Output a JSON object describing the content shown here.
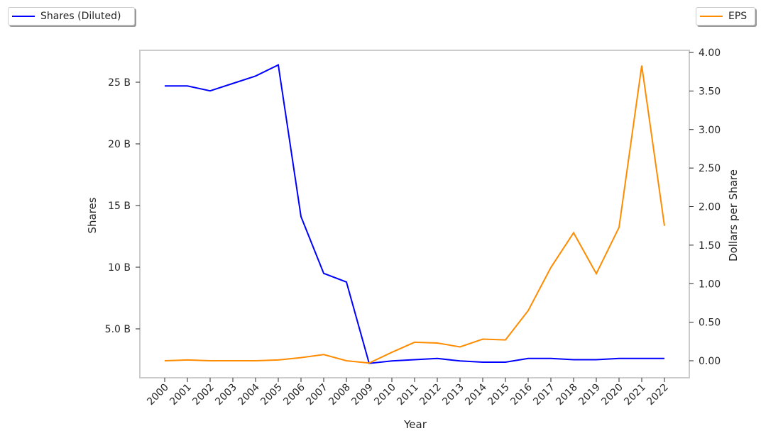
{
  "chart_data": {
    "type": "line",
    "xlabel": "Year",
    "categories": [
      "2000",
      "2001",
      "2002",
      "2003",
      "2004",
      "2005",
      "2006",
      "2007",
      "2008",
      "2009",
      "2010",
      "2011",
      "2012",
      "2013",
      "2014",
      "2015",
      "2016",
      "2017",
      "2018",
      "2019",
      "2020",
      "2021",
      "2022"
    ],
    "series": [
      {
        "name": "Shares (Diluted)",
        "axis": "left",
        "color": "#0000ff",
        "unit": "B",
        "values": [
          24.7,
          24.7,
          24.3,
          24.9,
          25.5,
          26.4,
          14.1,
          9.5,
          8.8,
          2.2,
          2.4,
          2.5,
          2.6,
          2.4,
          2.3,
          2.3,
          2.6,
          2.6,
          2.5,
          2.5,
          2.6,
          2.6,
          2.6
        ]
      },
      {
        "name": "EPS",
        "axis": "right",
        "color": "#ff8c00",
        "values": [
          0.0,
          0.01,
          0.0,
          0.0,
          0.0,
          0.01,
          0.04,
          0.08,
          0.0,
          -0.03,
          0.11,
          0.24,
          0.23,
          0.18,
          0.28,
          0.27,
          0.65,
          1.21,
          1.66,
          1.13,
          1.73,
          3.83,
          1.75
        ]
      }
    ],
    "left_axis": {
      "label": "Shares",
      "ticks": [
        5,
        10,
        15,
        20,
        25
      ],
      "tick_labels": [
        "5.0 B",
        "10 B",
        "15 B",
        "20 B",
        "25 B"
      ]
    },
    "right_axis": {
      "label": "Dollars per Share",
      "ticks": [
        0,
        0.5,
        1,
        1.5,
        2,
        2.5,
        3,
        3.5,
        4
      ],
      "tick_labels": [
        "0.00",
        "0.50",
        "1.00",
        "1.50",
        "2.00",
        "2.50",
        "3.00",
        "3.50",
        "4.00"
      ]
    },
    "grid": false,
    "legend": [
      "top-left: Shares (Diluted)",
      "top-right: EPS"
    ]
  },
  "legend": {
    "left_label": "Shares (Diluted)",
    "right_label": "EPS"
  }
}
